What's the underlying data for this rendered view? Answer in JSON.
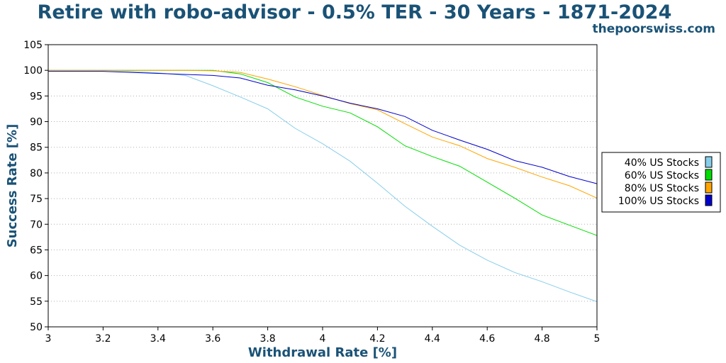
{
  "chart_data": {
    "type": "line",
    "title": "Retire with robo-advisor - 0.5% TER - 30 Years - 1871-2024",
    "subtitle": "thepoorswiss.com",
    "xlabel": "Withdrawal Rate [%]",
    "ylabel": "Success Rate [%]",
    "xlim": [
      3,
      5
    ],
    "ylim": [
      50,
      105
    ],
    "xticks": [
      "3",
      "3.2",
      "3.4",
      "3.6",
      "3.8",
      "4",
      "4.2",
      "4.4",
      "4.6",
      "4.8",
      "5"
    ],
    "yticks": [
      "50",
      "55",
      "60",
      "65",
      "70",
      "75",
      "80",
      "85",
      "90",
      "95",
      "100",
      "105"
    ],
    "grid": "horizontal-dotted",
    "legend_position": "right",
    "x": [
      3.0,
      3.1,
      3.2,
      3.3,
      3.4,
      3.5,
      3.6,
      3.7,
      3.8,
      3.9,
      4.0,
      4.1,
      4.2,
      4.3,
      4.4,
      4.5,
      4.6,
      4.7,
      4.8,
      4.9,
      5.0
    ],
    "series": [
      {
        "name": "40% US Stocks",
        "color": "#87CEEB",
        "values": [
          100,
          100,
          100,
          99.8,
          99.5,
          99.0,
          97.0,
          94.8,
          92.5,
          88.7,
          85.7,
          82.3,
          78.0,
          73.5,
          69.6,
          65.9,
          63.0,
          60.6,
          58.8,
          56.8,
          54.9
        ]
      },
      {
        "name": "60% US Stocks",
        "color": "#00DD00",
        "values": [
          100,
          100,
          100,
          100,
          100,
          100,
          100,
          99.3,
          97.6,
          94.8,
          93.0,
          91.7,
          89.0,
          85.3,
          83.2,
          81.3,
          78.2,
          75.1,
          71.8,
          69.8,
          67.8
        ]
      },
      {
        "name": "80% US Stocks",
        "color": "#FFA500",
        "values": [
          100,
          100,
          100,
          100,
          100,
          100,
          99.9,
          99.6,
          98.3,
          96.8,
          95.1,
          93.5,
          92.3,
          89.6,
          87.0,
          85.3,
          82.8,
          81.1,
          79.2,
          77.5,
          75.1
        ]
      },
      {
        "name": "100% US Stocks",
        "color": "#0000CC",
        "values": [
          99.8,
          99.8,
          99.8,
          99.6,
          99.4,
          99.2,
          99.0,
          98.5,
          97.1,
          96.2,
          95.0,
          93.6,
          92.5,
          91.0,
          88.3,
          86.4,
          84.6,
          82.4,
          81.1,
          79.3,
          77.9
        ]
      }
    ]
  },
  "colors": {
    "title": "#1a5276",
    "axis_title": "#1a5276"
  }
}
